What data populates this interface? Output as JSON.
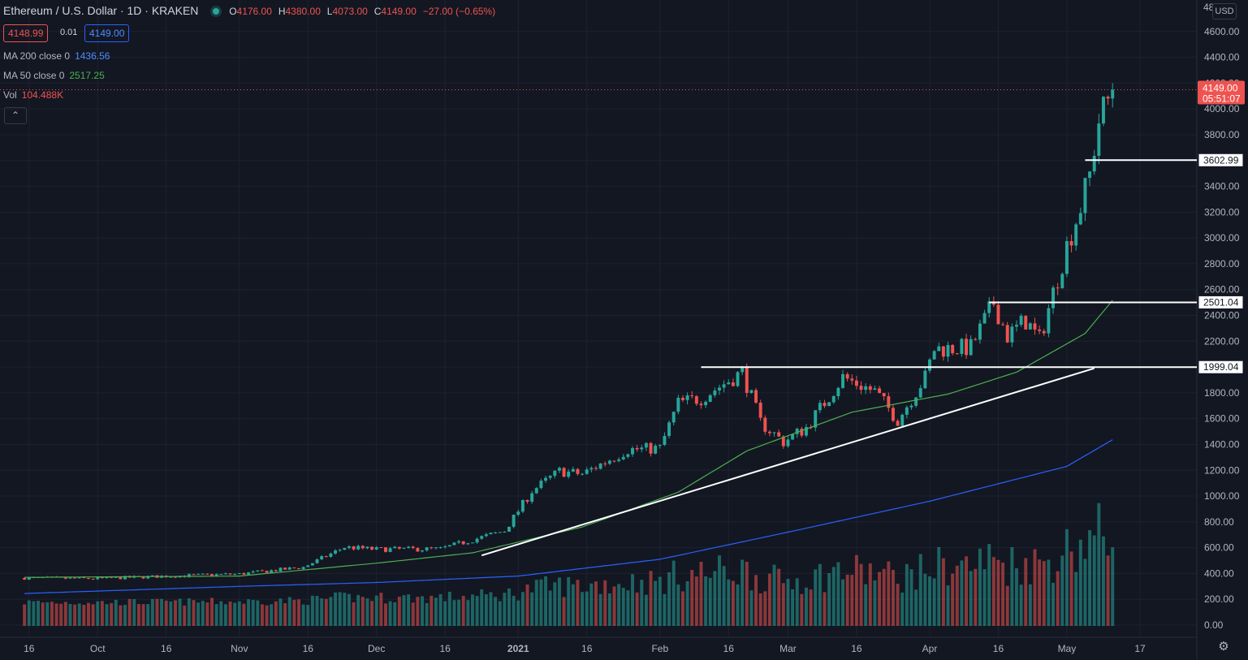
{
  "header": {
    "symbol": "Ethereum / U.S. Dollar · 1D · KRAKEN",
    "o_label": "O",
    "o_value": "4176.00",
    "h_label": "H",
    "h_value": "4380.00",
    "l_label": "L",
    "l_value": "4073.00",
    "c_label": "C",
    "c_value": "4149.00",
    "change": "−27.00 (−0.65%)"
  },
  "quote": {
    "bid": "4148.99",
    "spread": "0.01",
    "ask": "4149.00"
  },
  "indicators": {
    "ma200_name": "MA 200 close 0",
    "ma200_value": "1436.56",
    "ma50_name": "MA 50 close 0",
    "ma50_value": "2517.25",
    "vol_name": "Vol",
    "vol_value": "104.488K",
    "collapse_icon": "chevron-up-icon"
  },
  "price_axis": {
    "currency": "USD",
    "top_partial": "48",
    "labels": [
      "4600.00",
      "4400.00",
      "4200.00",
      "4000.00",
      "3800.00",
      "3600.00",
      "3400.00",
      "3200.00",
      "3000.00",
      "2800.00",
      "2600.00",
      "2400.00",
      "2200.00",
      "2000.00",
      "1800.00",
      "1600.00",
      "1400.00",
      "1200.00",
      "1000.00",
      "800.00",
      "600.00",
      "400.00",
      "200.00",
      "0.00"
    ],
    "current_price": "4149.00",
    "countdown": "05:51:07",
    "level_labels": [
      "3602.99",
      "2501.04",
      "1999.04"
    ]
  },
  "time_axis": {
    "labels": [
      "16",
      "Oct",
      "16",
      "Nov",
      "16",
      "Dec",
      "16",
      "2021",
      "16",
      "Feb",
      "16",
      "Mar",
      "16",
      "Apr",
      "16",
      "May",
      "17"
    ]
  },
  "colors": {
    "up": "#26a69a",
    "down": "#ef5350",
    "ma50": "#4caf50",
    "ma200": "#2962ff",
    "drawing": "#ffffff",
    "background": "#131722",
    "grid": "#1e2230"
  },
  "chart_data": {
    "type": "candlestick",
    "title": "Ethereum / U.S. Dollar · 1D · KRAKEN",
    "y_range": [
      -100,
      4800
    ],
    "x_range": [
      "2020-09-10",
      "2021-05-17"
    ],
    "last_close": 4149.0,
    "closes_sampled": [
      {
        "date": "2020-09-15",
        "close": 365
      },
      {
        "date": "2020-10-01",
        "close": 360
      },
      {
        "date": "2020-10-15",
        "close": 378
      },
      {
        "date": "2020-11-01",
        "close": 396
      },
      {
        "date": "2020-11-15",
        "close": 448
      },
      {
        "date": "2020-11-24",
        "close": 604
      },
      {
        "date": "2020-12-01",
        "close": 587
      },
      {
        "date": "2020-12-15",
        "close": 590
      },
      {
        "date": "2020-12-29",
        "close": 731
      },
      {
        "date": "2021-01-04",
        "close": 1040
      },
      {
        "date": "2021-01-10",
        "close": 1192
      },
      {
        "date": "2021-01-15",
        "close": 1170
      },
      {
        "date": "2021-01-25",
        "close": 1360
      },
      {
        "date": "2021-02-01",
        "close": 1370
      },
      {
        "date": "2021-02-05",
        "close": 1720
      },
      {
        "date": "2021-02-10",
        "close": 1760
      },
      {
        "date": "2021-02-19",
        "close": 1960
      },
      {
        "date": "2021-02-23",
        "close": 1570
      },
      {
        "date": "2021-02-28",
        "close": 1420
      },
      {
        "date": "2021-03-05",
        "close": 1530
      },
      {
        "date": "2021-03-13",
        "close": 1920
      },
      {
        "date": "2021-03-20",
        "close": 1810
      },
      {
        "date": "2021-03-25",
        "close": 1590
      },
      {
        "date": "2021-03-31",
        "close": 1920
      },
      {
        "date": "2021-04-02",
        "close": 2140
      },
      {
        "date": "2021-04-10",
        "close": 2150
      },
      {
        "date": "2021-04-15",
        "close": 2500
      },
      {
        "date": "2021-04-18",
        "close": 2240
      },
      {
        "date": "2021-04-22",
        "close": 2360
      },
      {
        "date": "2021-04-25",
        "close": 2210
      },
      {
        "date": "2021-05-01",
        "close": 2940
      },
      {
        "date": "2021-05-04",
        "close": 3240
      },
      {
        "date": "2021-05-06",
        "close": 3490
      },
      {
        "date": "2021-05-08",
        "close": 3910
      },
      {
        "date": "2021-05-11",
        "close": 4149
      }
    ],
    "ma50_sampled": [
      {
        "date": "2020-09-15",
        "value": 370
      },
      {
        "date": "2020-11-01",
        "value": 380
      },
      {
        "date": "2020-12-01",
        "value": 480
      },
      {
        "date": "2020-12-22",
        "value": 560
      },
      {
        "date": "2021-01-15",
        "value": 760
      },
      {
        "date": "2021-02-05",
        "value": 1030
      },
      {
        "date": "2021-02-20",
        "value": 1350
      },
      {
        "date": "2021-03-15",
        "value": 1650
      },
      {
        "date": "2021-04-05",
        "value": 1790
      },
      {
        "date": "2021-04-20",
        "value": 1960
      },
      {
        "date": "2021-05-05",
        "value": 2260
      },
      {
        "date": "2021-05-11",
        "value": 2517.25
      }
    ],
    "ma200_sampled": [
      {
        "date": "2020-09-15",
        "value": 245
      },
      {
        "date": "2020-11-01",
        "value": 300
      },
      {
        "date": "2020-12-01",
        "value": 330
      },
      {
        "date": "2021-01-01",
        "value": 380
      },
      {
        "date": "2021-02-01",
        "value": 510
      },
      {
        "date": "2021-03-01",
        "value": 720
      },
      {
        "date": "2021-04-01",
        "value": 960
      },
      {
        "date": "2021-05-01",
        "value": 1230
      },
      {
        "date": "2021-05-11",
        "value": 1436.56
      }
    ],
    "volume_unit": "K",
    "last_volume": 104.488,
    "horizontal_levels": [
      3602.99,
      2501.04,
      1999.04
    ],
    "trendline": [
      {
        "date": "2020-12-24",
        "price": 540
      },
      {
        "date": "2021-05-07",
        "price": 1990
      }
    ]
  }
}
